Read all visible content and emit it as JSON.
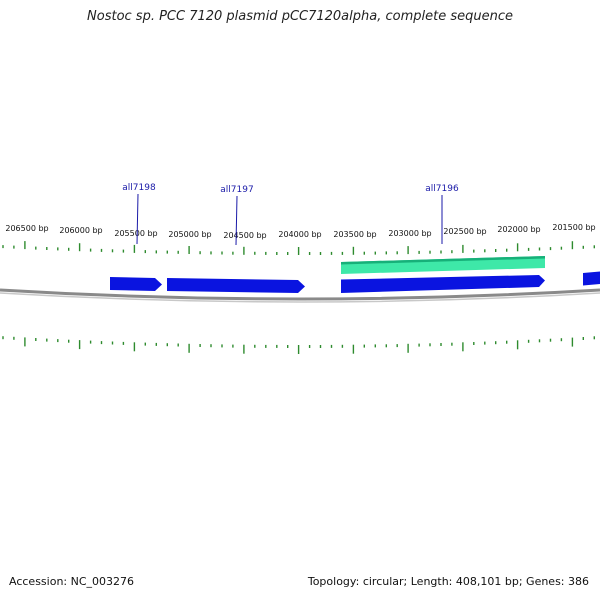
{
  "title": "Nostoc sp. PCC 7120 plasmid pCC7120alpha, complete sequence",
  "footer": {
    "accession": "Accession: NC_003276",
    "topology": "circular",
    "length": "408,101 bp",
    "genes": "386",
    "summary": "Topology: circular; Length: 408,101 bp; Genes: 386"
  },
  "colors": {
    "backbone": "#8a8a8a",
    "tick": "#2e8b2e",
    "gene_reverse": "#0a14e0",
    "gene_forward": "#3ee8a8",
    "label": "#1a1aa8"
  },
  "ticks": {
    "minor_step_bp": 100,
    "major_step_bp": 500,
    "labels": [
      "206500 bp",
      "206000 bp",
      "205500 bp",
      "205000 bp",
      "204500 bp",
      "204000 bp",
      "203500 bp",
      "203000 bp",
      "202500 bp",
      "202000 bp",
      "201500 bp"
    ]
  },
  "genes": [
    {
      "strand": "reverse"
    },
    {
      "strand": "reverse"
    },
    {
      "strand": "reverse"
    },
    {
      "strand": "forward"
    },
    {
      "strand": "reverse"
    }
  ],
  "gene_labels": [
    "all7198",
    "all7197",
    "all7196"
  ]
}
